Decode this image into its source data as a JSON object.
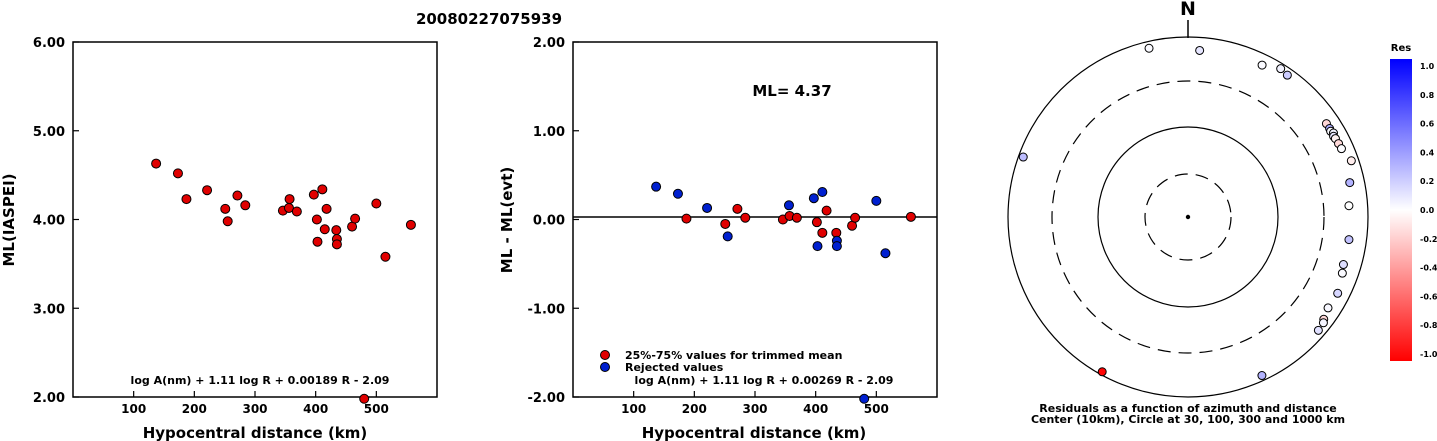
{
  "title": "20080227075939",
  "chart_data": [
    {
      "type": "scatter",
      "ylabel": "ML(IASPEI)",
      "xlabel": "Hypocentral distance (km)",
      "xlim": [
        0,
        600
      ],
      "ylim": [
        2.0,
        6.0
      ],
      "xticks": [
        "100",
        "200",
        "300",
        "400",
        "500"
      ],
      "yticks": [
        "2.00",
        "3.00",
        "4.00",
        "5.00",
        "6.00"
      ],
      "formula": "log A(nm) + 1.11 log R + 0.00189 R - 2.09",
      "marker_color": "#e00000",
      "points": [
        {
          "x": 137,
          "y": 4.63
        },
        {
          "x": 173,
          "y": 4.52
        },
        {
          "x": 187,
          "y": 4.23
        },
        {
          "x": 221,
          "y": 4.33
        },
        {
          "x": 251,
          "y": 4.12
        },
        {
          "x": 255,
          "y": 3.98
        },
        {
          "x": 271,
          "y": 4.27
        },
        {
          "x": 284,
          "y": 4.16
        },
        {
          "x": 346,
          "y": 4.1
        },
        {
          "x": 356,
          "y": 4.13
        },
        {
          "x": 357,
          "y": 4.23
        },
        {
          "x": 369,
          "y": 4.09
        },
        {
          "x": 397,
          "y": 4.28
        },
        {
          "x": 402,
          "y": 4.0
        },
        {
          "x": 403,
          "y": 3.75
        },
        {
          "x": 411,
          "y": 4.34
        },
        {
          "x": 415,
          "y": 3.89
        },
        {
          "x": 418,
          "y": 4.12
        },
        {
          "x": 434,
          "y": 3.88
        },
        {
          "x": 435,
          "y": 3.78
        },
        {
          "x": 435,
          "y": 3.72
        },
        {
          "x": 460,
          "y": 3.92
        },
        {
          "x": 465,
          "y": 4.01
        },
        {
          "x": 500,
          "y": 4.18
        },
        {
          "x": 515,
          "y": 3.58
        },
        {
          "x": 557,
          "y": 3.94
        },
        {
          "x": 480,
          "y": 1.98
        }
      ]
    },
    {
      "type": "scatter",
      "ylabel": "ML - ML(evt)",
      "xlabel": "Hypocentral distance (km)",
      "xlim": [
        0,
        600
      ],
      "ylim": [
        -2.0,
        2.0
      ],
      "xticks": [
        "100",
        "200",
        "300",
        "400",
        "500"
      ],
      "yticks": [
        "-2.00",
        "-1.00",
        "0.00",
        "1.00",
        "2.00"
      ],
      "annotation": "ML= 4.37",
      "formula": "log A(nm) + 1.11 log R + 0.00269 R - 2.09",
      "legend": [
        {
          "label": "25%-75% values for trimmed mean",
          "color": "#e00000"
        },
        {
          "label": "Rejected values",
          "color": "#0020d0"
        }
      ],
      "series": [
        {
          "color": "#e00000",
          "points": [
            {
              "x": 187,
              "y": 0.01
            },
            {
              "x": 251,
              "y": -0.05
            },
            {
              "x": 271,
              "y": 0.12
            },
            {
              "x": 284,
              "y": 0.02
            },
            {
              "x": 346,
              "y": 0.0
            },
            {
              "x": 357,
              "y": 0.04
            },
            {
              "x": 369,
              "y": 0.02
            },
            {
              "x": 402,
              "y": -0.03
            },
            {
              "x": 411,
              "y": -0.15
            },
            {
              "x": 418,
              "y": 0.1
            },
            {
              "x": 434,
              "y": -0.15
            },
            {
              "x": 460,
              "y": -0.07
            },
            {
              "x": 465,
              "y": 0.02
            },
            {
              "x": 557,
              "y": 0.03
            }
          ]
        },
        {
          "color": "#0020d0",
          "points": [
            {
              "x": 137,
              "y": 0.37
            },
            {
              "x": 173,
              "y": 0.29
            },
            {
              "x": 221,
              "y": 0.13
            },
            {
              "x": 255,
              "y": -0.19
            },
            {
              "x": 356,
              "y": 0.16
            },
            {
              "x": 397,
              "y": 0.24
            },
            {
              "x": 403,
              "y": -0.3
            },
            {
              "x": 411,
              "y": 0.31
            },
            {
              "x": 435,
              "y": -0.24
            },
            {
              "x": 435,
              "y": -0.3
            },
            {
              "x": 500,
              "y": 0.21
            },
            {
              "x": 515,
              "y": -0.38
            },
            {
              "x": 480,
              "y": -2.02
            }
          ]
        }
      ]
    },
    {
      "type": "polar-scatter",
      "north_label": "N",
      "caption_line1": "Residuals as a function of azimuth and distance",
      "caption_line2": "Center (10km), Circle at 30, 100, 300 and 1000 km",
      "circles_km": [
        30,
        100,
        300,
        1000
      ],
      "colorbar": {
        "title": "Res",
        "ticks": [
          "1.0",
          "0.8",
          "0.6",
          "0.4",
          "0.2",
          "0.0",
          "-0.2",
          "-0.4",
          "-0.6",
          "-0.8",
          "-1.0"
        ],
        "max_color": "#0000ff",
        "min_color": "#ff0000"
      },
      "stations": [
        {
          "azimuth_deg": 26,
          "distance_km": 740,
          "res": 0.02
        },
        {
          "azimuth_deg": 35,
          "distance_km": 830,
          "res": 0.2
        },
        {
          "azimuth_deg": 32,
          "distance_km": 870,
          "res": 0.05
        },
        {
          "azimuth_deg": 347,
          "distance_km": 830,
          "res": 0.02
        },
        {
          "azimuth_deg": 4,
          "distance_km": 700,
          "res": 0.1
        },
        {
          "azimuth_deg": 290,
          "distance_km": 880,
          "res": 0.26
        },
        {
          "azimuth_deg": 209,
          "distance_km": 920,
          "res": -0.99
        },
        {
          "azimuth_deg": 155,
          "distance_km": 870,
          "res": 0.3
        },
        {
          "azimuth_deg": 56,
          "distance_km": 700,
          "res": -0.16
        },
        {
          "azimuth_deg": 58,
          "distance_km": 700,
          "res": 0.32
        },
        {
          "azimuth_deg": 59,
          "distance_km": 690,
          "res": 0.02
        },
        {
          "azimuth_deg": 60,
          "distance_km": 720,
          "res": 0.05
        },
        {
          "azimuth_deg": 61,
          "distance_km": 690,
          "res": 0.1
        },
        {
          "azimuth_deg": 62,
          "distance_km": 700,
          "res": -0.05
        },
        {
          "azimuth_deg": 64,
          "distance_km": 710,
          "res": -0.15
        },
        {
          "azimuth_deg": 66,
          "distance_km": 720,
          "res": 0.01
        },
        {
          "azimuth_deg": 71,
          "distance_km": 820,
          "res": -0.07
        },
        {
          "azimuth_deg": 78,
          "distance_km": 670,
          "res": 0.3
        },
        {
          "azimuth_deg": 86,
          "distance_km": 600,
          "res": 0.0
        },
        {
          "azimuth_deg": 98,
          "distance_km": 620,
          "res": 0.24
        },
        {
          "azimuth_deg": 107,
          "distance_km": 620,
          "res": 0.13
        },
        {
          "azimuth_deg": 110,
          "distance_km": 650,
          "res": 0.02
        },
        {
          "azimuth_deg": 117,
          "distance_km": 720,
          "res": 0.16
        },
        {
          "azimuth_deg": 123,
          "distance_km": 700,
          "res": 0.03
        },
        {
          "azimuth_deg": 127,
          "distance_km": 760,
          "res": -0.15
        },
        {
          "azimuth_deg": 128,
          "distance_km": 800,
          "res": 0.04
        },
        {
          "azimuth_deg": 131,
          "distance_km": 820,
          "res": 0.12
        }
      ]
    }
  ]
}
